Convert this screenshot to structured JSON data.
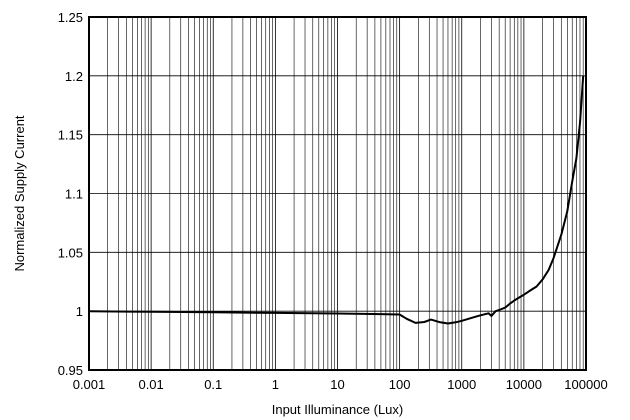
{
  "chart_data": {
    "type": "line",
    "title": "",
    "xlabel": "Input Illuminance (Lux)",
    "ylabel": "Normalized Supply Current",
    "x_scale": "log",
    "xlim": [
      0.001,
      100000
    ],
    "ylim": [
      0.95,
      1.25
    ],
    "x_ticks": [
      0.001,
      0.01,
      0.1,
      1,
      10,
      100,
      1000,
      10000,
      100000
    ],
    "x_tick_labels": [
      "0.001",
      "0.01",
      "0.1",
      "1",
      "10",
      "100",
      "1000",
      "10000",
      "100000"
    ],
    "y_ticks": [
      0.95,
      1,
      1.05,
      1.1,
      1.15,
      1.2,
      1.25
    ],
    "y_tick_labels": [
      "0.95",
      "1",
      "1.05",
      "1.1",
      "1.15",
      "1.2",
      "1.25"
    ],
    "grid": true,
    "line_color": "#000000",
    "series": [
      {
        "x": [
          0.001,
          0.01,
          0.1,
          1,
          10,
          50,
          100,
          130,
          180,
          250,
          320,
          450,
          600,
          800,
          1000,
          1500,
          2000,
          2700,
          3000,
          3500,
          4000,
          5000,
          6000,
          7000,
          8000,
          10000,
          13000,
          16000,
          20000,
          25000,
          30000,
          40000,
          50000,
          60000,
          70000,
          80000,
          90000
        ],
        "y": [
          1.0,
          0.9995,
          0.999,
          0.9985,
          0.998,
          0.9975,
          0.9972,
          0.9935,
          0.99,
          0.9908,
          0.9928,
          0.9905,
          0.9895,
          0.9905,
          0.9918,
          0.9945,
          0.9965,
          0.9982,
          0.996,
          1.0,
          1.001,
          1.003,
          1.0065,
          1.009,
          1.011,
          1.014,
          1.018,
          1.021,
          1.027,
          1.035,
          1.045,
          1.065,
          1.085,
          1.11,
          1.13,
          1.16,
          1.2
        ]
      }
    ]
  }
}
